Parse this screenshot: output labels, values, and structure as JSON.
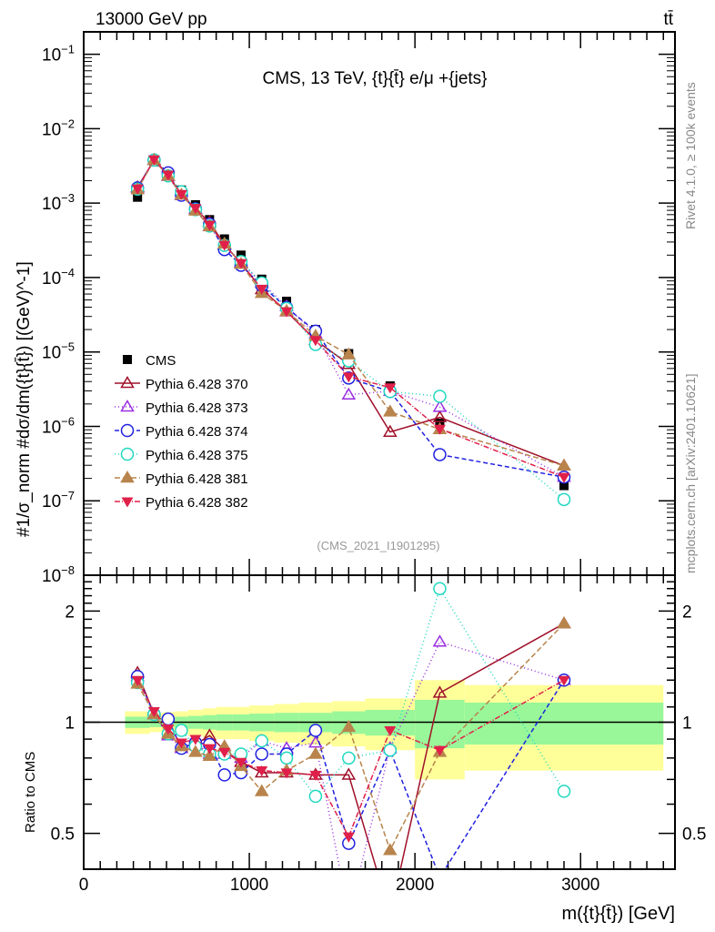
{
  "header": {
    "beam": "13000 GeV pp",
    "process": "tt̄"
  },
  "side_labels": {
    "rivet": "Rivet 4.1.0, ≥ 100k events",
    "site": "mcplots.cern.ch [arXiv:2401.10621]"
  },
  "chart_data": {
    "type": "line",
    "title": "CMS, 13 TeV, {t}{t̄} e/μ +{jets}",
    "analysis": "(CMS_2021_I1901295)",
    "xlabel": "m({t}{t̄}) [GeV]",
    "ylabel": "#1/σ_norm #dσ/dm({t}{t̄}) [(GeV)^-1]",
    "ratio_ylabel": "Ratio to CMS",
    "xlim": [
      0,
      3570
    ],
    "ylim": [
      1e-08,
      0.2
    ],
    "ratio_ylim": [
      0.4,
      2.5
    ],
    "yscale": "log",
    "ratio_yscale": "log",
    "x_ticks": [
      "0",
      "1000",
      "2000",
      "3000"
    ],
    "y_ticks": [
      "10^-1",
      "10^-2",
      "10^-3",
      "10^-4",
      "10^-5",
      "10^-6",
      "10^-7",
      "10^-8"
    ],
    "ratio_ticks": [
      "0.5",
      "1",
      "2"
    ],
    "legend_position": "left-middle",
    "x": [
      325,
      425,
      510,
      590,
      675,
      760,
      850,
      950,
      1075,
      1225,
      1400,
      1600,
      1850,
      2150,
      2900
    ],
    "data": {
      "name": "CMS",
      "values": [
        0.0012,
        0.0036,
        0.0025,
        0.0015,
        0.00095,
        0.0006,
        0.00033,
        0.0002,
        9.5e-05,
        4.8e-05,
        2e-05,
        9.5e-06,
        3.5e-06,
        1.1e-06,
        1.6e-07
      ]
    },
    "bin_edges": [
      250,
      400,
      480,
      550,
      630,
      720,
      800,
      900,
      1000,
      1150,
      1300,
      1500,
      1700,
      2000,
      2300,
      3500
    ],
    "uncertainty_band_stat": [
      0.035,
      0.03,
      0.03,
      0.035,
      0.04,
      0.045,
      0.05,
      0.05,
      0.055,
      0.06,
      0.06,
      0.07,
      0.08,
      0.15,
      0.13
    ],
    "uncertainty_band_total": [
      0.07,
      0.06,
      0.065,
      0.07,
      0.08,
      0.09,
      0.1,
      0.1,
      0.11,
      0.12,
      0.13,
      0.14,
      0.16,
      0.3,
      0.26
    ],
    "series": [
      {
        "name": "Pythia 6.428 370",
        "color": "#a0102a",
        "marker": "open-triangle",
        "dash": "",
        "ratio": [
          1.36,
          1.05,
          0.93,
          0.86,
          0.87,
          0.92,
          0.84,
          0.78,
          0.73,
          0.73,
          0.72,
          0.72,
          0.24,
          1.2,
          1.85
        ]
      },
      {
        "name": "Pythia 6.428 373",
        "color": "#9a2ee0",
        "marker": "open-triangle",
        "dash": "1,3",
        "ratio": [
          1.33,
          1.05,
          0.92,
          0.85,
          0.88,
          0.82,
          0.82,
          0.8,
          0.89,
          0.85,
          0.88,
          0.28,
          0.85,
          1.65,
          1.3
        ]
      },
      {
        "name": "Pythia 6.428 374",
        "color": "#2020e0",
        "marker": "open-circle",
        "dash": "5,3",
        "ratio": [
          1.33,
          1.05,
          1.02,
          0.85,
          0.88,
          0.87,
          0.72,
          0.73,
          0.82,
          0.82,
          0.95,
          0.47,
          0.84,
          0.38,
          1.3
        ]
      },
      {
        "name": "Pythia 6.428 375",
        "color": "#20d8c0",
        "marker": "open-circle",
        "dash": "1,3",
        "ratio": [
          1.28,
          1.05,
          0.93,
          0.95,
          0.86,
          0.82,
          0.82,
          0.82,
          0.89,
          0.8,
          0.63,
          0.8,
          0.84,
          2.3,
          0.65
        ]
      },
      {
        "name": "Pythia 6.428 381",
        "color": "#b8844c",
        "marker": "filled-triangle",
        "dash": "6,3",
        "ratio": [
          1.27,
          1.05,
          0.93,
          0.86,
          0.83,
          0.81,
          0.86,
          0.76,
          0.65,
          0.74,
          0.82,
          0.97,
          0.45,
          0.83,
          1.85
        ]
      },
      {
        "name": "Pythia 6.428 382",
        "color": "#e0204a",
        "marker": "filled-down-triangle",
        "dash": "6,2,1,2",
        "ratio": [
          1.3,
          1.07,
          0.96,
          0.88,
          0.9,
          0.85,
          0.83,
          0.78,
          0.74,
          0.73,
          0.72,
          0.49,
          0.95,
          0.84,
          1.3
        ]
      }
    ]
  }
}
